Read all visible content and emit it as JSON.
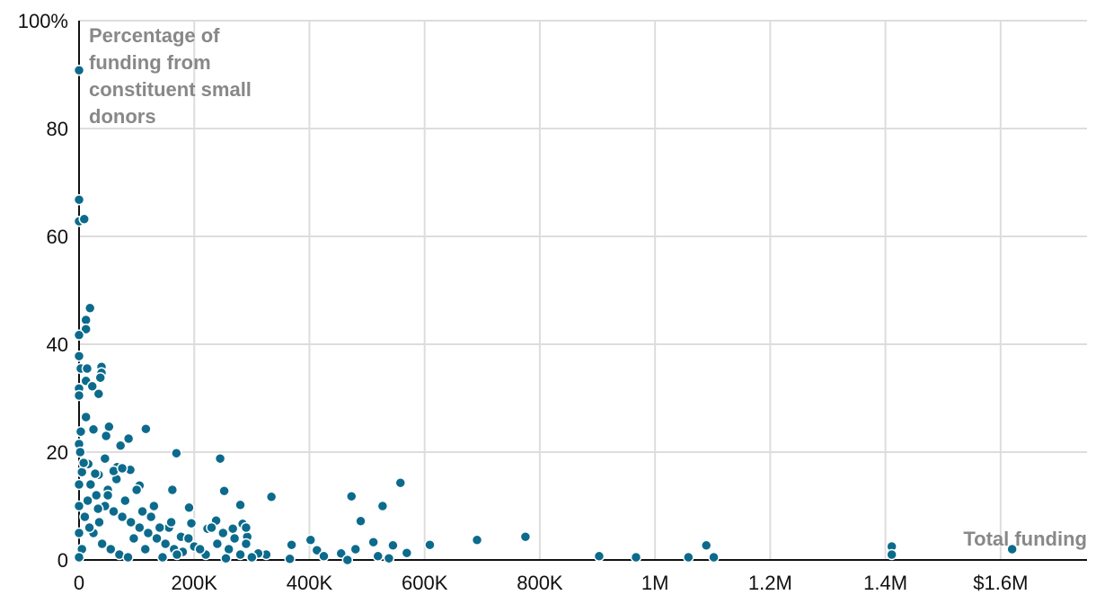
{
  "chart_data": {
    "type": "scatter",
    "ylabel": "Percentage of funding from constituent small donors",
    "xlabel": "Total funding",
    "color": "#0c6b8c",
    "grid": true,
    "xlim": [
      0,
      1750000
    ],
    "ylim": [
      0,
      100
    ],
    "xticks": [
      0,
      {
        "value": 200000,
        "label": "200K"
      },
      {
        "value": 400000,
        "label": "400K"
      },
      {
        "value": 600000,
        "label": "600K"
      },
      {
        "value": 800000,
        "label": "800K"
      },
      {
        "value": 1000000,
        "label": "1M"
      },
      {
        "value": 1200000,
        "label": "1.2M"
      },
      {
        "value": 1400000,
        "label": "1.4M"
      },
      {
        "value": 1600000,
        "label": "$1.6M"
      }
    ],
    "yticks": [
      0,
      20,
      40,
      60,
      80,
      {
        "value": 100,
        "label": "100%"
      }
    ],
    "x": [
      0,
      0,
      0,
      9000,
      19000,
      12000,
      12000,
      0,
      0,
      3000,
      14000,
      39000,
      39000,
      37000,
      12000,
      0,
      23000,
      34000,
      0,
      12000,
      25000,
      52000,
      116000,
      3000,
      47000,
      86000,
      72000,
      0,
      169000,
      245000,
      16000,
      45000,
      66000,
      89000,
      34000,
      5000,
      105000,
      558000,
      162000,
      252000,
      334000,
      473000,
      527000,
      280000,
      191000,
      489000,
      195000,
      238000,
      284000,
      223000,
      267000,
      156000,
      292000,
      177000,
      775000,
      691000,
      402000,
      369000,
      609000,
      511000,
      545000,
      413000,
      480000,
      455000,
      569000,
      1089000,
      1411000,
      1411000,
      1620000,
      903000,
      967000,
      1058000,
      1102000,
      366000,
      466000,
      538000,
      425000,
      325000,
      311000,
      519000,
      20000,
      30000,
      45000,
      60000,
      75000,
      90000,
      105000,
      120000,
      135000,
      150000,
      165000,
      180000,
      200000,
      220000,
      240000,
      260000,
      280000,
      300000,
      10000,
      25000,
      40000,
      55000,
      70000,
      85000,
      15000,
      35000,
      50000,
      65000,
      80000,
      95000,
      110000,
      125000,
      140000,
      5000,
      0,
      0,
      0,
      100000,
      130000,
      160000,
      190000,
      210000,
      250000,
      270000,
      230000,
      0,
      2000,
      8000,
      28000,
      60000,
      75000,
      50000,
      33000,
      18000,
      115000,
      145000,
      170000,
      255000,
      290000,
      290000
    ],
    "values": [
      90.8,
      66.8,
      62.8,
      63.2,
      46.7,
      44.5,
      42.8,
      41.7,
      37.8,
      35.5,
      35.5,
      35.8,
      34.7,
      33.8,
      33.2,
      31.8,
      32.2,
      30.8,
      30.5,
      26.5,
      24.2,
      24.7,
      24.3,
      23.8,
      23,
      22.5,
      21.2,
      21.5,
      19.8,
      18.8,
      17.8,
      18.8,
      17.2,
      16.7,
      15.8,
      16.3,
      13.8,
      14.3,
      13,
      12.8,
      11.7,
      11.8,
      10,
      10.2,
      9.7,
      7.2,
      6.8,
      7.3,
      6.7,
      5.8,
      5.8,
      6,
      4.3,
      4.3,
      4.3,
      3.7,
      3.7,
      2.8,
      2.8,
      3.3,
      2.7,
      1.8,
      2,
      1.2,
      1.3,
      2.7,
      2.5,
      1,
      2,
      0.7,
      0.5,
      0.5,
      0.5,
      0.2,
      0,
      0.3,
      0.7,
      1,
      1.2,
      0.7,
      14,
      12,
      10,
      9,
      8,
      7,
      6,
      5,
      4,
      3,
      2,
      1.5,
      2.5,
      1,
      3,
      2,
      1,
      0.5,
      8,
      5,
      3,
      2,
      1,
      0.5,
      11,
      7,
      13,
      15,
      11,
      4,
      9,
      8,
      6,
      2,
      5,
      10,
      14,
      13,
      10,
      7,
      4,
      2,
      5,
      4,
      6,
      0.5,
      20,
      18,
      16,
      16.5,
      17,
      12,
      9.5,
      6,
      2,
      0.5,
      1,
      0.3,
      6,
      3
    ]
  }
}
